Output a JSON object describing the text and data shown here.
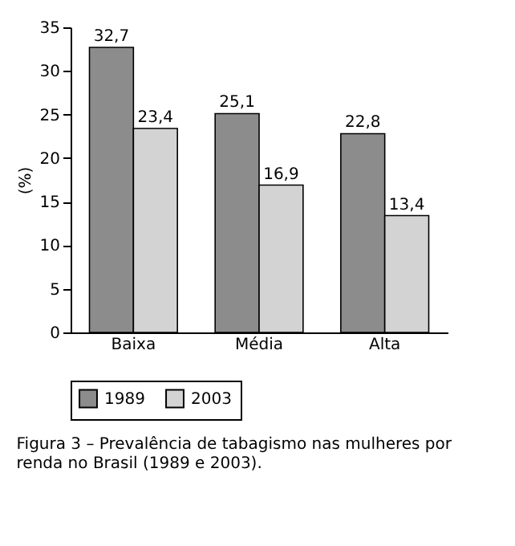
{
  "chart_data": {
    "type": "bar",
    "categories": [
      "Baixa",
      "Média",
      "Alta"
    ],
    "series": [
      {
        "name": "1989",
        "color": "#8c8c8c",
        "values": [
          32.7,
          25.1,
          22.8
        ]
      },
      {
        "name": "2003",
        "color": "#d3d3d3",
        "values": [
          23.4,
          16.9,
          13.4
        ]
      }
    ],
    "ylabel": "(%)",
    "ylim": [
      0,
      35
    ],
    "yticks": [
      0,
      5,
      10,
      15,
      20,
      25,
      30,
      35
    ],
    "grid": false,
    "legend": "bottom",
    "value_labels": [
      [
        "32,7",
        "25,1",
        "22,8"
      ],
      [
        "23,4",
        "16,9",
        "13,4"
      ]
    ],
    "annotations": [
      "Figura 3 – Prevalência de tabagismo nas mulheres por renda no Brasil (1989 e 2003)."
    ]
  }
}
